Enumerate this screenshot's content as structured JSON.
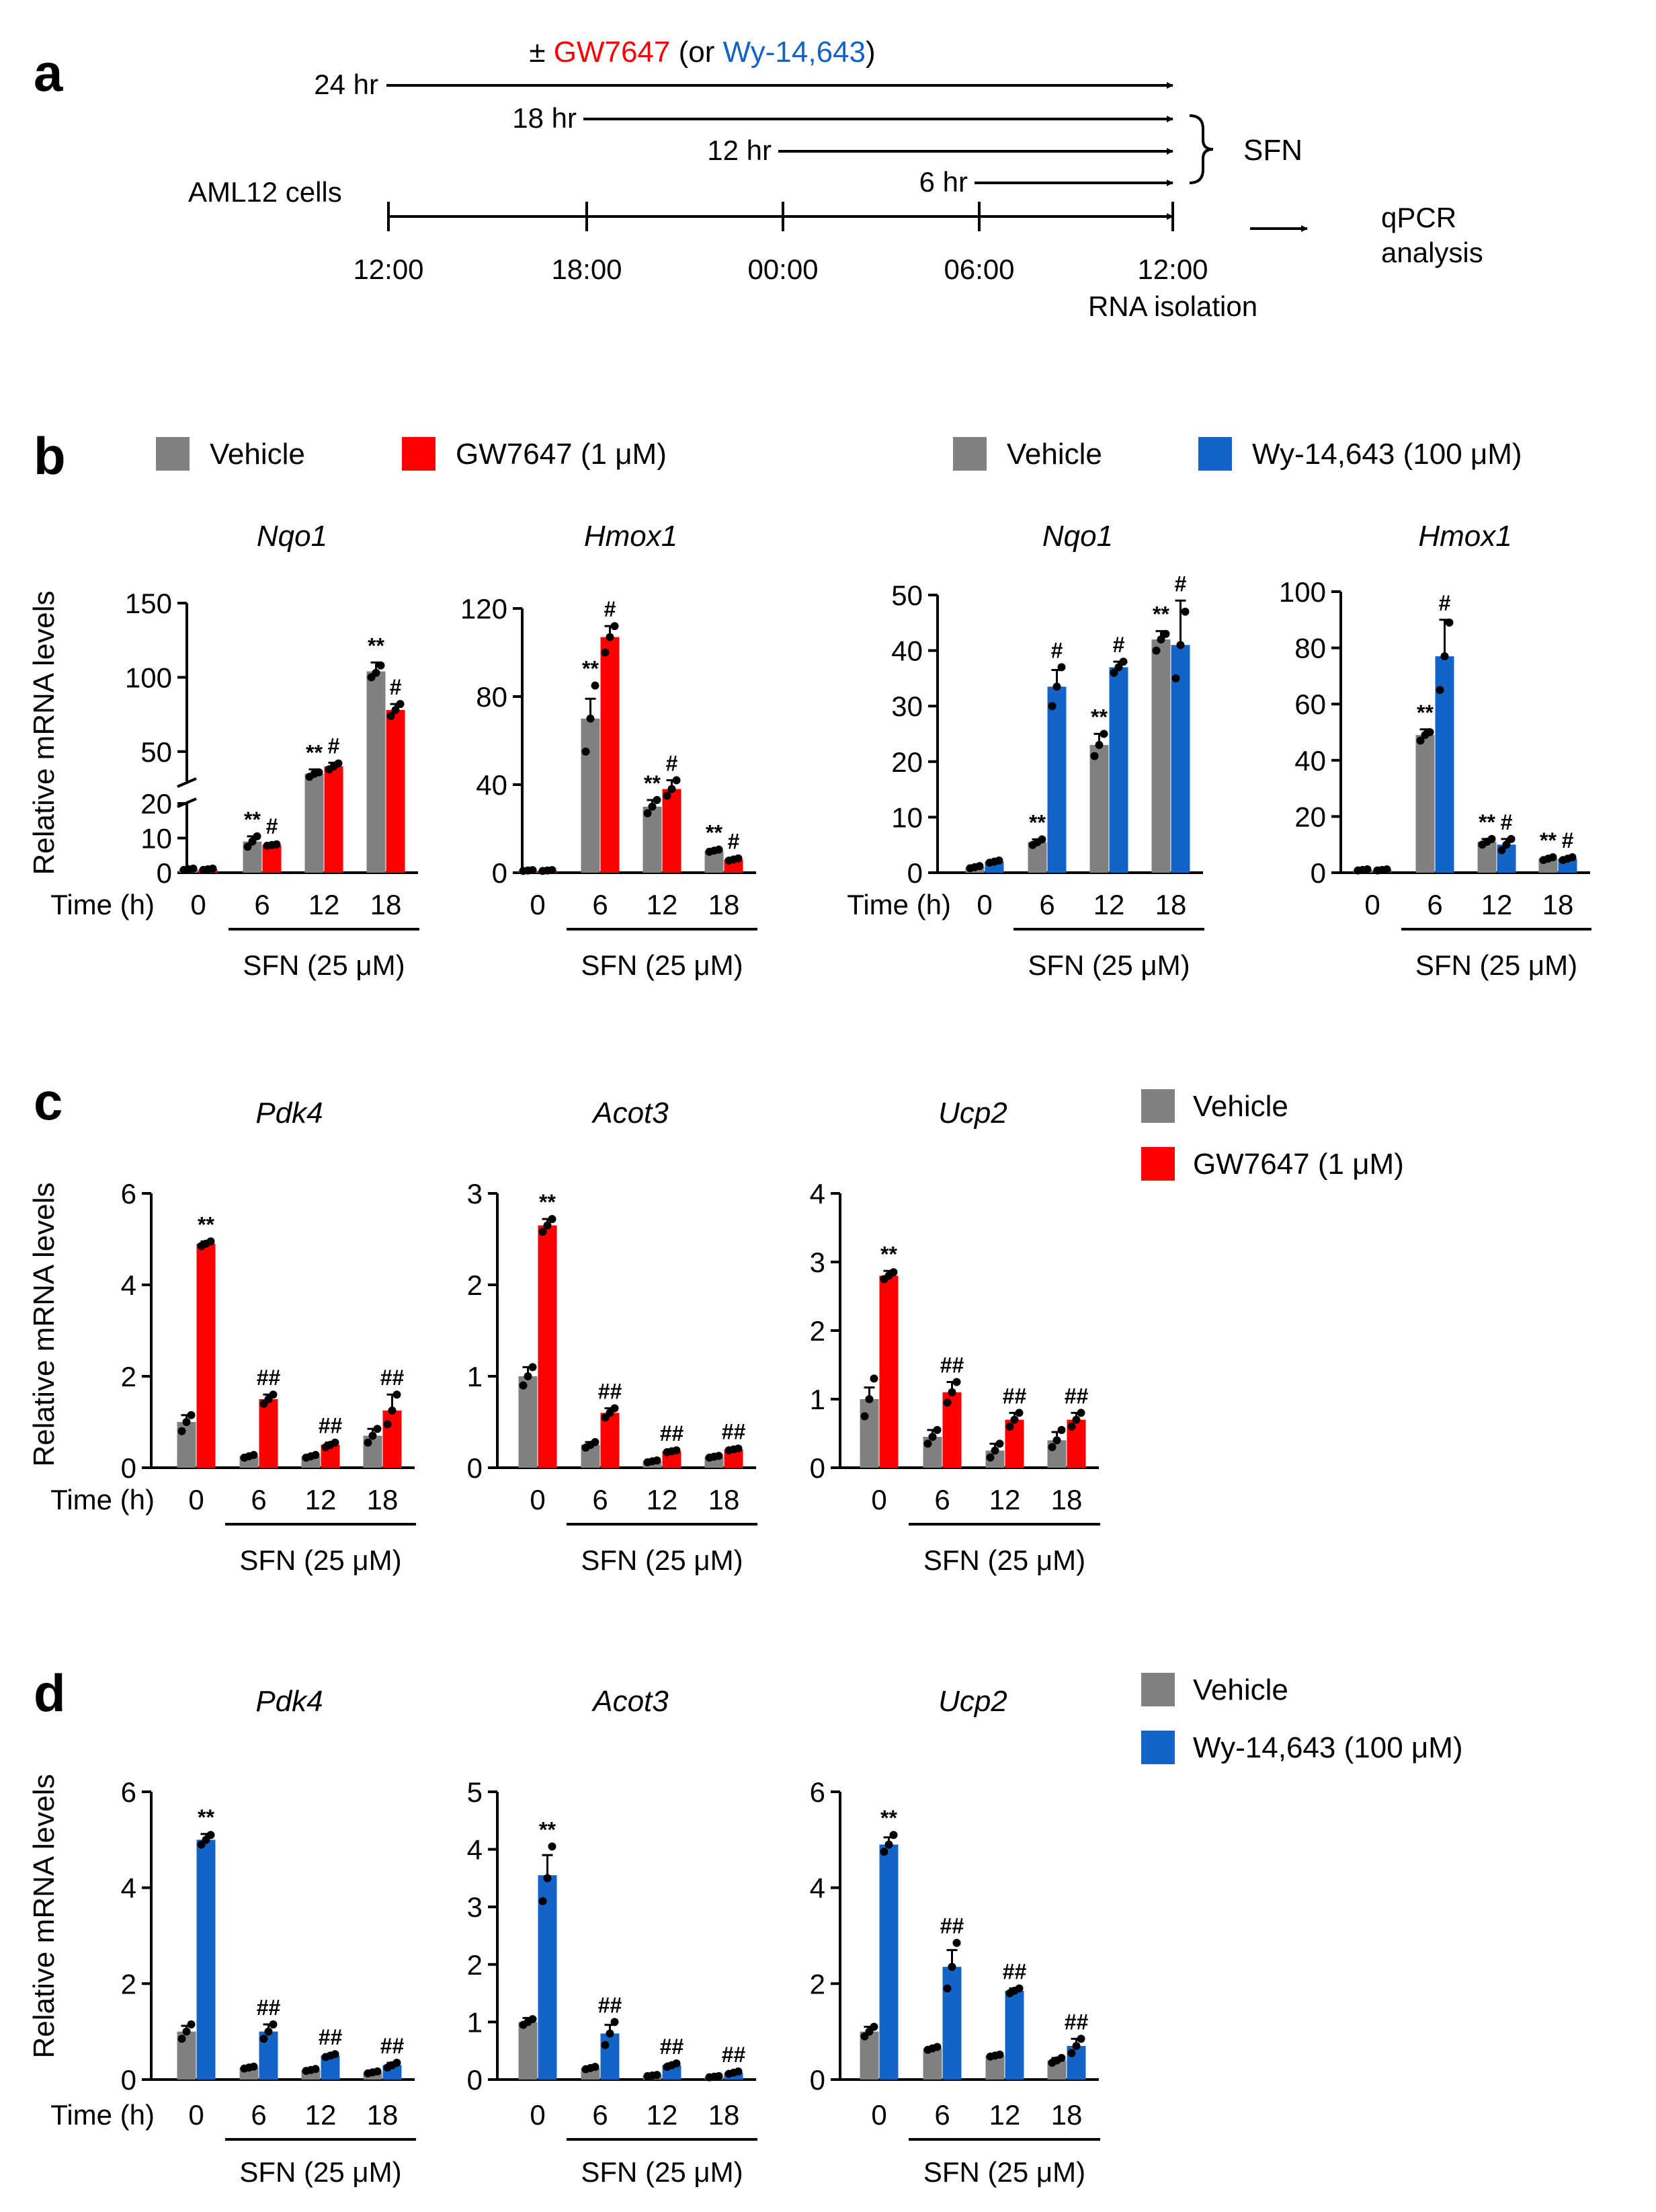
{
  "colors": {
    "vehicle": "#808080",
    "gw": "#ff0000",
    "wy": "#1464c8",
    "black": "#000000"
  },
  "panel_labels": {
    "a": "a",
    "b": "b",
    "c": "c",
    "d": "d"
  },
  "panel_a": {
    "treatment_prefix": "± ",
    "gw_name": "GW7647",
    "or_open": " (or ",
    "wy_name": "Wy-14,643",
    "or_close": ")",
    "durations": [
      "24 hr",
      "18 hr",
      "12 hr",
      "6 hr"
    ],
    "sfn_label": "SFN",
    "cells_label": "AML12 cells",
    "timeline_ticks": [
      "12:00",
      "18:00",
      "00:00",
      "06:00",
      "12:00"
    ],
    "rna_label": "RNA isolation",
    "qpcr_label_line1": "qPCR",
    "qpcr_label_line2": "analysis"
  },
  "legends": {
    "b_left": {
      "vehicle": "Vehicle",
      "treatment": "GW7647 (1 μM)"
    },
    "b_right": {
      "vehicle": "Vehicle",
      "treatment": "Wy-14,643 (100 μM)"
    },
    "c": {
      "vehicle": "Vehicle",
      "treatment": "GW7647 (1 μM)"
    },
    "d": {
      "vehicle": "Vehicle",
      "treatment": "Wy-14,643 (100 μM)"
    }
  },
  "common": {
    "ylabel": "Relative mRNA levels",
    "time_label": "Time (h)",
    "sfn_label": "SFN (25 μM)",
    "time_points": [
      "0",
      "6",
      "12",
      "18"
    ]
  },
  "chart_data": [
    {
      "id": "b1",
      "type": "bar",
      "title": "Nqo1",
      "treatment": "gw",
      "broken_axis": true,
      "yticks": [
        0,
        10,
        20,
        50,
        100,
        150
      ],
      "categories": [
        "0",
        "6",
        "12",
        "18"
      ],
      "series": [
        {
          "name": "Vehicle",
          "values": [
            1,
            9,
            35,
            104
          ],
          "errors": [
            0.3,
            1.5,
            3,
            6
          ],
          "points": [
            [
              0.8,
              1,
              1.2
            ],
            [
              7.5,
              9,
              10.5
            ],
            [
              33,
              35,
              36
            ],
            [
              100,
              103,
              108
            ]
          ]
        },
        {
          "name": "GW7647 (1 μM)",
          "values": [
            1,
            8,
            40,
            78
          ],
          "errors": [
            0.2,
            0.5,
            2.5,
            4
          ],
          "points": [
            [
              0.8,
              1,
              1.2
            ],
            [
              7.8,
              8,
              8.2
            ],
            [
              38,
              40,
              42
            ],
            [
              74,
              78,
              82
            ]
          ]
        }
      ],
      "annotations": {
        "vehicle": [
          "",
          "**",
          "**",
          "**"
        ],
        "treatment": [
          "",
          "#",
          "#",
          "#"
        ]
      }
    },
    {
      "id": "b2",
      "type": "bar",
      "title": "Hmox1",
      "treatment": "gw",
      "ylim": [
        0,
        120
      ],
      "yticks": [
        0,
        40,
        80,
        120
      ],
      "categories": [
        "0",
        "6",
        "12",
        "18"
      ],
      "series": [
        {
          "name": "Vehicle",
          "values": [
            1,
            70,
            30,
            10
          ],
          "errors": [
            0.2,
            9,
            3,
            0.6
          ],
          "points": [
            [
              0.8,
              1,
              1.2
            ],
            [
              55,
              70,
              85
            ],
            [
              27,
              30,
              33
            ],
            [
              9.5,
              10,
              10.5
            ]
          ]
        },
        {
          "name": "GW7647 (1 μM)",
          "values": [
            1,
            107,
            38,
            6
          ],
          "errors": [
            0.2,
            5,
            4,
            0.5
          ],
          "points": [
            [
              0.8,
              1,
              1.2
            ],
            [
              100,
              107,
              112
            ],
            [
              35,
              38,
              42
            ],
            [
              5.5,
              6,
              6.5
            ]
          ]
        }
      ],
      "annotations": {
        "vehicle": [
          "",
          "**",
          "**",
          "**"
        ],
        "treatment": [
          "",
          "#",
          "#",
          "#"
        ]
      }
    },
    {
      "id": "b3",
      "type": "bar",
      "title": "Nqo1",
      "treatment": "wy",
      "ylim": [
        0,
        50
      ],
      "yticks": [
        0,
        10,
        20,
        30,
        40,
        50
      ],
      "categories": [
        "0",
        "6",
        "12",
        "18"
      ],
      "series": [
        {
          "name": "Vehicle",
          "values": [
            1,
            5.5,
            23,
            42
          ],
          "errors": [
            0.3,
            0.5,
            2,
            1.5
          ],
          "points": [
            [
              0.8,
              1,
              1.2
            ],
            [
              5,
              5.5,
              6
            ],
            [
              21,
              23,
              25
            ],
            [
              40,
              42,
              43
            ]
          ]
        },
        {
          "name": "Wy-14,643 (100 μM)",
          "values": [
            2,
            33.5,
            37,
            41
          ],
          "errors": [
            0.3,
            3,
            1,
            8
          ],
          "points": [
            [
              1.8,
              2,
              2.2
            ],
            [
              30,
              33.5,
              37
            ],
            [
              36,
              37,
              38
            ],
            [
              35,
              41,
              47
            ]
          ]
        }
      ],
      "annotations": {
        "vehicle": [
          "",
          "**",
          "**",
          "**"
        ],
        "treatment": [
          "",
          "#",
          "#",
          "#"
        ]
      }
    },
    {
      "id": "b4",
      "type": "bar",
      "title": "Hmox1",
      "treatment": "wy",
      "ylim": [
        0,
        100
      ],
      "yticks": [
        0,
        20,
        40,
        60,
        80,
        100
      ],
      "categories": [
        "0",
        "6",
        "12",
        "18"
      ],
      "series": [
        {
          "name": "Vehicle",
          "values": [
            1,
            49,
            11,
            5
          ],
          "errors": [
            0.2,
            2,
            1,
            0.5
          ],
          "points": [
            [
              0.8,
              1,
              1.2
            ],
            [
              47,
              49,
              50
            ],
            [
              10,
              11,
              12
            ],
            [
              4.5,
              5,
              5.5
            ]
          ]
        },
        {
          "name": "Wy-14,643 (100 μM)",
          "values": [
            1,
            77,
            10,
            5
          ],
          "errors": [
            0.2,
            13,
            2,
            0.5
          ],
          "points": [
            [
              0.8,
              1,
              1.2
            ],
            [
              65,
              77,
              89
            ],
            [
              8,
              10,
              12
            ],
            [
              4.5,
              5,
              5.5
            ]
          ]
        }
      ],
      "annotations": {
        "vehicle": [
          "",
          "**",
          "**",
          "**"
        ],
        "treatment": [
          "",
          "#",
          "#",
          "#"
        ]
      }
    },
    {
      "id": "c1",
      "type": "bar",
      "title": "Pdk4",
      "treatment": "gw",
      "ylim": [
        0,
        6
      ],
      "yticks": [
        0,
        2,
        4,
        6
      ],
      "categories": [
        "0",
        "6",
        "12",
        "18"
      ],
      "series": [
        {
          "name": "Vehicle",
          "values": [
            1,
            0.25,
            0.25,
            0.7
          ],
          "errors": [
            0.15,
            0.03,
            0.03,
            0.15
          ],
          "points": [
            [
              0.8,
              1,
              1.15
            ],
            [
              0.22,
              0.25,
              0.28
            ],
            [
              0.22,
              0.25,
              0.28
            ],
            [
              0.55,
              0.7,
              0.85
            ]
          ]
        },
        {
          "name": "GW7647 (1 μM)",
          "values": [
            4.9,
            1.5,
            0.5,
            1.25
          ],
          "errors": [
            0.05,
            0.1,
            0.05,
            0.35
          ],
          "points": [
            [
              4.85,
              4.9,
              4.95
            ],
            [
              1.4,
              1.5,
              1.6
            ],
            [
              0.45,
              0.5,
              0.55
            ],
            [
              0.95,
              1.25,
              1.6
            ]
          ]
        }
      ],
      "annotations": {
        "treatment": [
          "**",
          "##",
          "##",
          "##"
        ]
      }
    },
    {
      "id": "c2",
      "type": "bar",
      "title": "Acot3",
      "treatment": "gw",
      "ylim": [
        0,
        3
      ],
      "yticks": [
        0,
        1,
        2,
        3
      ],
      "categories": [
        "0",
        "6",
        "12",
        "18"
      ],
      "series": [
        {
          "name": "Vehicle",
          "values": [
            1,
            0.25,
            0.07,
            0.12
          ],
          "errors": [
            0.1,
            0.03,
            0.01,
            0.01
          ],
          "points": [
            [
              0.9,
              1,
              1.1
            ],
            [
              0.22,
              0.25,
              0.28
            ],
            [
              0.06,
              0.07,
              0.08
            ],
            [
              0.11,
              0.12,
              0.13
            ]
          ]
        },
        {
          "name": "GW7647 (1 μM)",
          "values": [
            2.65,
            0.6,
            0.18,
            0.2
          ],
          "errors": [
            0.07,
            0.05,
            0.01,
            0.01
          ],
          "points": [
            [
              2.58,
              2.65,
              2.72
            ],
            [
              0.55,
              0.6,
              0.65
            ],
            [
              0.17,
              0.18,
              0.19
            ],
            [
              0.19,
              0.2,
              0.21
            ]
          ]
        }
      ],
      "annotations": {
        "treatment": [
          "**",
          "##",
          "##",
          "##"
        ]
      }
    },
    {
      "id": "c3",
      "type": "bar",
      "title": "Ucp2",
      "treatment": "gw",
      "ylim": [
        0,
        4
      ],
      "yticks": [
        0,
        1,
        2,
        3,
        4
      ],
      "categories": [
        "0",
        "6",
        "12",
        "18"
      ],
      "series": [
        {
          "name": "Vehicle",
          "values": [
            1,
            0.45,
            0.25,
            0.4
          ],
          "errors": [
            0.17,
            0.1,
            0.1,
            0.12
          ],
          "points": [
            [
              0.75,
              1,
              1.3
            ],
            [
              0.35,
              0.45,
              0.55
            ],
            [
              0.15,
              0.25,
              0.35
            ],
            [
              0.3,
              0.4,
              0.55
            ]
          ]
        },
        {
          "name": "GW7647 (1 μM)",
          "values": [
            2.8,
            1.1,
            0.7,
            0.7
          ],
          "errors": [
            0.07,
            0.15,
            0.1,
            0.1
          ],
          "points": [
            [
              2.75,
              2.8,
              2.85
            ],
            [
              0.95,
              1.1,
              1.25
            ],
            [
              0.6,
              0.7,
              0.8
            ],
            [
              0.6,
              0.7,
              0.8
            ]
          ]
        }
      ],
      "annotations": {
        "treatment": [
          "**",
          "##",
          "##",
          "##"
        ]
      }
    },
    {
      "id": "d1",
      "type": "bar",
      "title": "Pdk4",
      "treatment": "wy",
      "ylim": [
        0,
        6
      ],
      "yticks": [
        0,
        2,
        4,
        6
      ],
      "categories": [
        "0",
        "6",
        "12",
        "18"
      ],
      "series": [
        {
          "name": "Vehicle",
          "values": [
            1,
            0.25,
            0.2,
            0.15
          ],
          "errors": [
            0.12,
            0.02,
            0.02,
            0.02
          ],
          "points": [
            [
              0.85,
              1,
              1.15
            ],
            [
              0.23,
              0.25,
              0.27
            ],
            [
              0.18,
              0.2,
              0.22
            ],
            [
              0.13,
              0.15,
              0.17
            ]
          ]
        },
        {
          "name": "Wy-14,643 (100 μM)",
          "values": [
            5,
            1,
            0.5,
            0.3
          ],
          "errors": [
            0.12,
            0.15,
            0.03,
            0.05
          ],
          "points": [
            [
              4.9,
              5,
              5.1
            ],
            [
              0.85,
              1,
              1.15
            ],
            [
              0.47,
              0.5,
              0.53
            ],
            [
              0.25,
              0.3,
              0.35
            ]
          ]
        }
      ],
      "annotations": {
        "treatment": [
          "**",
          "##",
          "##",
          "##"
        ]
      }
    },
    {
      "id": "d2",
      "type": "bar",
      "title": "Acot3",
      "treatment": "wy",
      "ylim": [
        0,
        5
      ],
      "yticks": [
        0,
        1,
        2,
        3,
        4,
        5
      ],
      "categories": [
        "0",
        "6",
        "12",
        "18"
      ],
      "series": [
        {
          "name": "Vehicle",
          "values": [
            1,
            0.2,
            0.07,
            0.05
          ],
          "errors": [
            0.07,
            0.02,
            0.01,
            0.01
          ],
          "points": [
            [
              0.95,
              1,
              1.05
            ],
            [
              0.18,
              0.2,
              0.22
            ],
            [
              0.06,
              0.07,
              0.08
            ],
            [
              0.04,
              0.05,
              0.06
            ]
          ]
        },
        {
          "name": "Wy-14,643 (100 μM)",
          "values": [
            3.55,
            0.8,
            0.25,
            0.12
          ],
          "errors": [
            0.35,
            0.15,
            0.03,
            0.02
          ],
          "points": [
            [
              3.1,
              3.5,
              4.05
            ],
            [
              0.6,
              0.8,
              1.0
            ],
            [
              0.22,
              0.25,
              0.28
            ],
            [
              0.1,
              0.12,
              0.14
            ]
          ]
        }
      ],
      "annotations": {
        "treatment": [
          "**",
          "##",
          "##",
          "##"
        ]
      }
    },
    {
      "id": "d3",
      "type": "bar",
      "title": "Ucp2",
      "treatment": "wy",
      "ylim": [
        0,
        6
      ],
      "yticks": [
        0,
        2,
        4,
        6
      ],
      "categories": [
        "0",
        "6",
        "12",
        "18"
      ],
      "series": [
        {
          "name": "Vehicle",
          "values": [
            1,
            0.65,
            0.5,
            0.4
          ],
          "errors": [
            0.1,
            0.03,
            0.02,
            0.05
          ],
          "points": [
            [
              0.9,
              1,
              1.1
            ],
            [
              0.62,
              0.65,
              0.68
            ],
            [
              0.48,
              0.5,
              0.52
            ],
            [
              0.35,
              0.4,
              0.45
            ]
          ]
        },
        {
          "name": "Wy-14,643 (100 μM)",
          "values": [
            4.9,
            2.35,
            1.85,
            0.7
          ],
          "errors": [
            0.15,
            0.35,
            0.05,
            0.15
          ],
          "points": [
            [
              4.75,
              4.9,
              5.1
            ],
            [
              1.9,
              2.35,
              2.85
            ],
            [
              1.8,
              1.85,
              1.9
            ],
            [
              0.55,
              0.7,
              0.85
            ]
          ]
        }
      ],
      "annotations": {
        "treatment": [
          "**",
          "##",
          "##",
          "##"
        ]
      }
    }
  ]
}
